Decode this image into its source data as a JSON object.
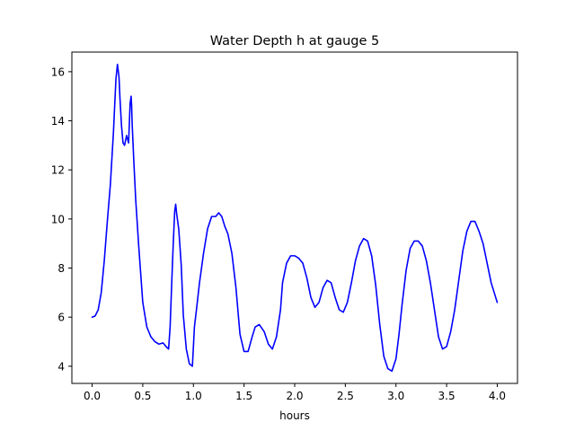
{
  "chart_data": {
    "type": "line",
    "title": "Water Depth h at gauge 5",
    "xlabel": "hours",
    "ylabel": "",
    "xlim": [
      -0.2,
      4.2
    ],
    "ylim": [
      3.3,
      16.8
    ],
    "xticks": [
      0.0,
      0.5,
      1.0,
      1.5,
      2.0,
      2.5,
      3.0,
      3.5,
      4.0
    ],
    "xtick_labels": [
      "0.0",
      "0.5",
      "1.0",
      "1.5",
      "2.0",
      "2.5",
      "3.0",
      "3.5",
      "4.0"
    ],
    "yticks": [
      4,
      6,
      8,
      10,
      12,
      14,
      16
    ],
    "ytick_labels": [
      "4",
      "6",
      "8",
      "10",
      "12",
      "14",
      "16"
    ],
    "grid": false,
    "series": [
      {
        "color": "#0000ff",
        "x": [
          0.0,
          0.03,
          0.06,
          0.09,
          0.12,
          0.15,
          0.18,
          0.21,
          0.235,
          0.25,
          0.265,
          0.275,
          0.29,
          0.305,
          0.32,
          0.34,
          0.36,
          0.375,
          0.385,
          0.39,
          0.395,
          0.41,
          0.43,
          0.46,
          0.5,
          0.54,
          0.58,
          0.62,
          0.66,
          0.7,
          0.73,
          0.755,
          0.77,
          0.785,
          0.8,
          0.815,
          0.825,
          0.835,
          0.855,
          0.88,
          0.9,
          0.93,
          0.96,
          0.99,
          1.01,
          1.03,
          1.06,
          1.1,
          1.14,
          1.18,
          1.22,
          1.25,
          1.28,
          1.31,
          1.34,
          1.38,
          1.42,
          1.46,
          1.5,
          1.54,
          1.58,
          1.61,
          1.65,
          1.7,
          1.74,
          1.78,
          1.82,
          1.86,
          1.88,
          1.92,
          1.96,
          2.0,
          2.04,
          2.08,
          2.12,
          2.16,
          2.2,
          2.24,
          2.28,
          2.32,
          2.36,
          2.4,
          2.44,
          2.48,
          2.52,
          2.56,
          2.6,
          2.64,
          2.68,
          2.72,
          2.76,
          2.8,
          2.84,
          2.88,
          2.92,
          2.96,
          3.0,
          3.03,
          3.06,
          3.1,
          3.14,
          3.18,
          3.22,
          3.26,
          3.3,
          3.34,
          3.38,
          3.42,
          3.46,
          3.5,
          3.54,
          3.58,
          3.62,
          3.66,
          3.7,
          3.74,
          3.78,
          3.82,
          3.86,
          3.9,
          3.94,
          4.0
        ],
        "y": [
          6.0,
          6.05,
          6.3,
          7.0,
          8.3,
          9.9,
          11.4,
          13.5,
          15.7,
          16.3,
          15.8,
          14.9,
          13.8,
          13.1,
          13.0,
          13.4,
          13.1,
          14.7,
          15.0,
          14.6,
          13.9,
          12.5,
          10.8,
          8.9,
          6.6,
          5.6,
          5.2,
          5.0,
          4.9,
          4.95,
          4.8,
          4.7,
          5.6,
          7.3,
          8.9,
          10.3,
          10.6,
          10.2,
          9.6,
          8.1,
          6.1,
          4.7,
          4.1,
          4.0,
          5.6,
          6.3,
          7.4,
          8.6,
          9.6,
          10.1,
          10.1,
          10.25,
          10.1,
          9.7,
          9.4,
          8.6,
          7.2,
          5.3,
          4.6,
          4.6,
          5.2,
          5.6,
          5.7,
          5.4,
          4.9,
          4.7,
          5.2,
          6.3,
          7.4,
          8.2,
          8.5,
          8.5,
          8.4,
          8.2,
          7.6,
          6.8,
          6.4,
          6.6,
          7.2,
          7.5,
          7.4,
          6.8,
          6.3,
          6.2,
          6.6,
          7.4,
          8.3,
          8.9,
          9.2,
          9.1,
          8.5,
          7.3,
          5.7,
          4.4,
          3.9,
          3.8,
          4.3,
          5.3,
          6.5,
          7.9,
          8.8,
          9.1,
          9.1,
          8.9,
          8.3,
          7.4,
          6.3,
          5.2,
          4.7,
          4.8,
          5.4,
          6.3,
          7.5,
          8.7,
          9.5,
          9.9,
          9.9,
          9.5,
          9.0,
          8.2,
          7.4,
          6.6
        ]
      }
    ]
  }
}
